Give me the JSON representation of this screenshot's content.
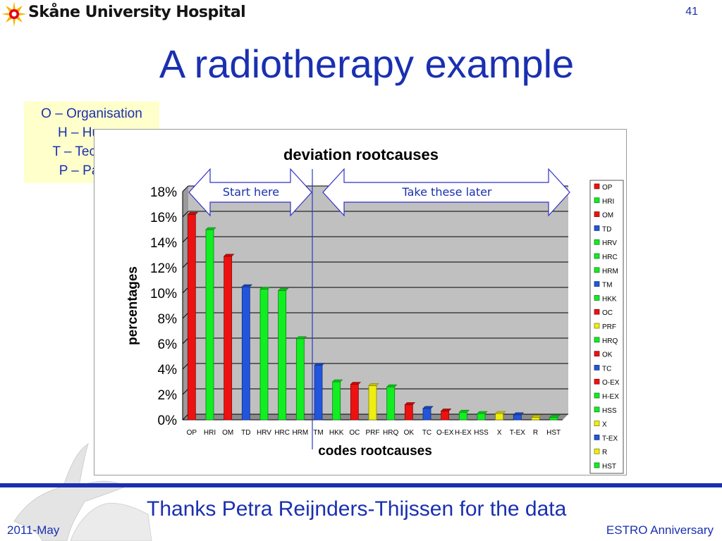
{
  "header": {
    "hospital_name": "Skåne University Hospital",
    "page_number": "41"
  },
  "slide": {
    "title": "A radiotherapy example",
    "legend_lines": [
      "O – Organisation",
      "H – Human",
      "T – Technical",
      "P – Patient"
    ],
    "thanks": "Thanks Petra Reijnders-Thijssen for the data"
  },
  "footer": {
    "left": "2011-May",
    "right": "ESTRO Anniversary"
  },
  "colors": {
    "accent": "#1a30b0",
    "O": "#ee1111",
    "H": "#11ee22",
    "T": "#2255dd",
    "P": "#eeee11",
    "plot_bg": "#c0c0c0"
  },
  "chart_data": {
    "type": "bar",
    "title": "deviation rootcauses",
    "xlabel": "codes rootcauses",
    "ylabel": "percentages",
    "ylim": [
      0,
      18
    ],
    "yticks": [
      "0%",
      "2%",
      "4%",
      "6%",
      "8%",
      "10%",
      "12%",
      "14%",
      "16%",
      "18%"
    ],
    "categories": [
      "OP",
      "HRI",
      "OM",
      "TD",
      "HRV",
      "HRC",
      "HRM",
      "TM",
      "HKK",
      "OC",
      "PRF",
      "HRQ",
      "OK",
      "TC",
      "O-EX",
      "H-EX",
      "HSS",
      "X",
      "T-EX",
      "R",
      "HST"
    ],
    "groups": [
      "O",
      "H",
      "O",
      "T",
      "H",
      "H",
      "H",
      "T",
      "H",
      "O",
      "P",
      "H",
      "O",
      "T",
      "O",
      "H",
      "H",
      "P",
      "T",
      "P",
      "H"
    ],
    "values": [
      16.2,
      15.0,
      12.9,
      10.5,
      10.3,
      10.2,
      6.4,
      4.3,
      3.0,
      2.8,
      2.7,
      2.6,
      1.2,
      0.9,
      0.7,
      0.6,
      0.5,
      0.5,
      0.4,
      0.2,
      0.2
    ],
    "legend_position": "right",
    "grid": true,
    "annotations": {
      "start": "Start here",
      "later": "Take these later"
    }
  }
}
